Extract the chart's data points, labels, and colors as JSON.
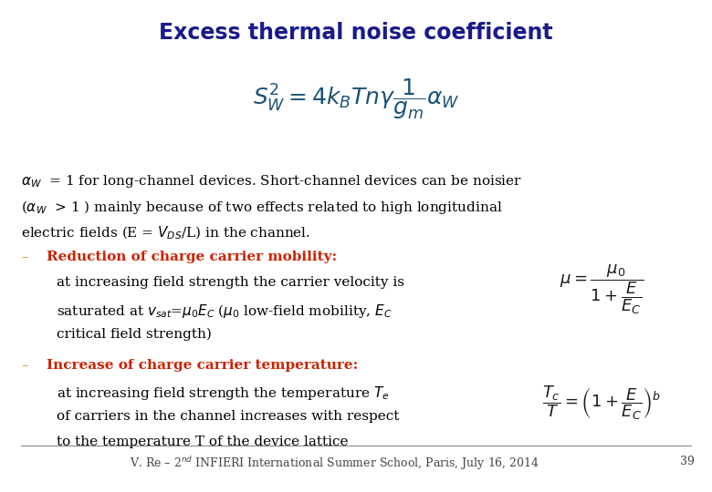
{
  "title": "Excess thermal noise coefficient",
  "title_color": "#1a1a8c",
  "title_fontsize": 17,
  "bg_color": "#ffffff",
  "main_formula": "$S_W^2 = 4k_B T n\\gamma \\dfrac{1}{g_m} \\alpha_W$",
  "formula_color": "#1a5276",
  "formula_fontsize": 18,
  "para1_line1": "$\\alpha_W$  = 1 for long-channel devices. Short-channel devices can be noisier",
  "para1_line2": "($\\alpha_W$  > 1 ) mainly because of two effects related to high longitudinal",
  "para1_line3": "electric fields (E = $V_{DS}$/L) in the channel.",
  "para1_color": "#000000",
  "para1_fontsize": 11,
  "bullet1_label": "–",
  "bullet1_title": "Reduction of charge carrier mobility:",
  "bullet1_title_color": "#cc2200",
  "bullet1_body_line1": "at increasing field strength the carrier velocity is",
  "bullet1_body_line2": "saturated at $v_{sat}$=$\\mu_0 E_C$ ($\\mu_0$ low-field mobility, $E_C$",
  "bullet1_body_line3": "critical field strength)",
  "bullet1_body_color": "#000000",
  "bullet1_fontsize": 11,
  "formula1": "$\\mu = \\dfrac{\\mu_0}{1 + \\dfrac{E}{E_C}}$",
  "formula1_color": "#1a1a1a",
  "formula1_fontsize": 13,
  "bullet2_label": "–",
  "bullet2_title": "Increase of charge carrier temperature:",
  "bullet2_title_color": "#cc2200",
  "bullet2_body_line1": "at increasing field strength the temperature $T_e$",
  "bullet2_body_line2": "of carriers in the channel increases with respect",
  "bullet2_body_line3": "to the temperature T of the device lattice",
  "bullet2_body_color": "#000000",
  "bullet2_fontsize": 11,
  "formula2": "$\\dfrac{T_c}{T} = \\left(1 + \\dfrac{E}{E_C}\\right)^b$",
  "formula2_color": "#1a1a1a",
  "formula2_fontsize": 13,
  "footer_text": "V. Re – 2$^{nd}$ INFIERI International Summer School, Paris, July 16, 2014",
  "footer_page": "39",
  "footer_color": "#444444",
  "footer_fontsize": 9,
  "bullet_label_color": "#cc8800",
  "line_color": "#888888"
}
